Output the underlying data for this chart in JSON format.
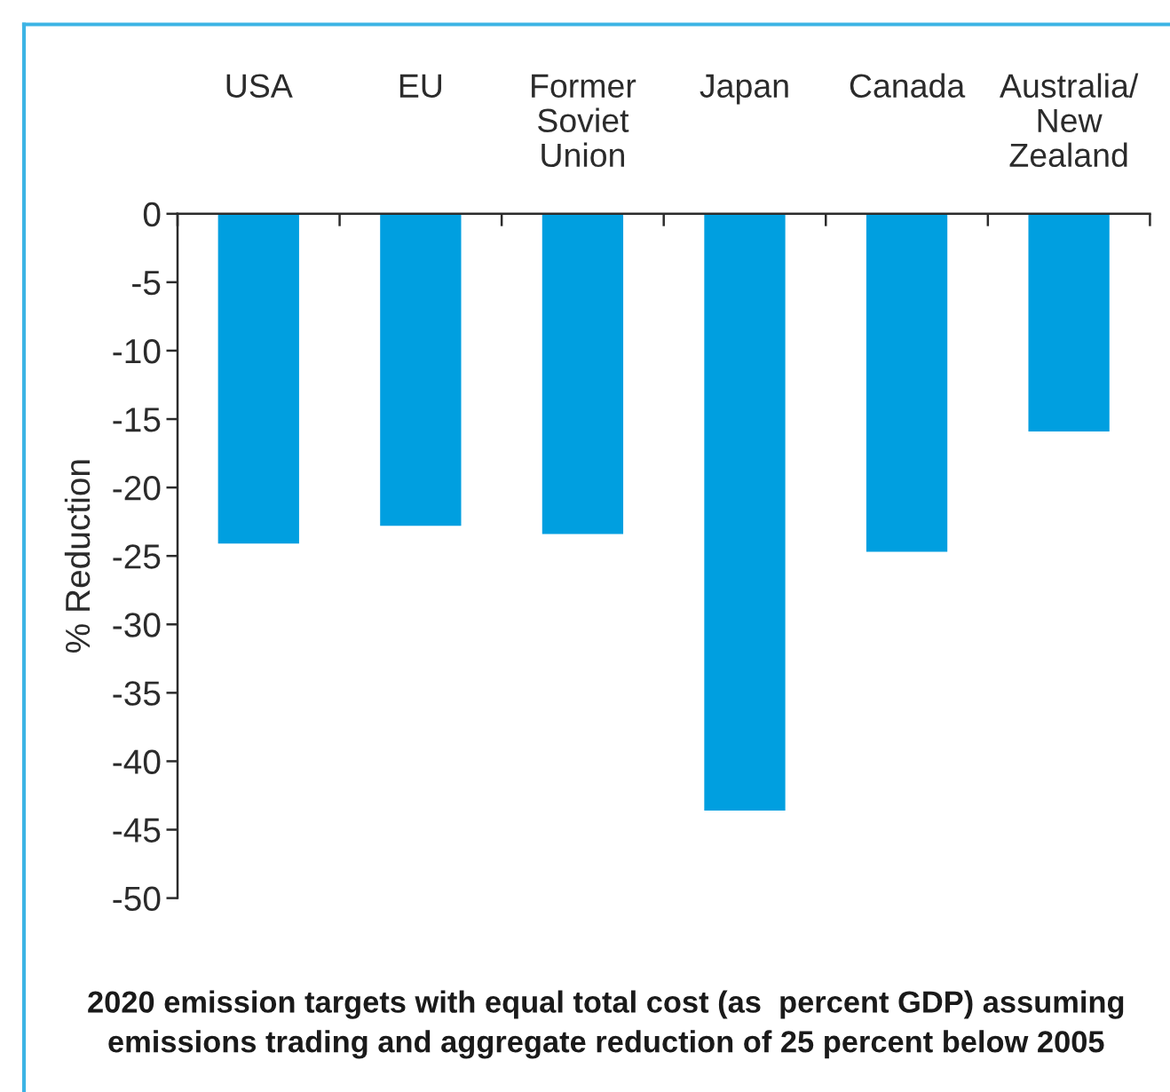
{
  "chart_data": {
    "type": "bar",
    "title": "2020 emission targets with equal total cost (as  percent GDP) assuming emissions trading and aggregate reduction of 25 percent below 2005",
    "ylabel": "% Reduction",
    "categories": [
      "USA",
      "EU",
      "Former\nSoviet\nUnion",
      "Japan",
      "Canada",
      "Australia/\nNew\nZealand"
    ],
    "values": [
      -24.1,
      -22.8,
      -23.4,
      -43.6,
      -24.7,
      -15.9
    ],
    "color": "#009fe0",
    "ylim": [
      -50,
      0
    ],
    "yticks": [
      0,
      -5,
      -10,
      -15,
      -20,
      -25,
      -30,
      -35,
      -40,
      -45,
      -50
    ]
  }
}
